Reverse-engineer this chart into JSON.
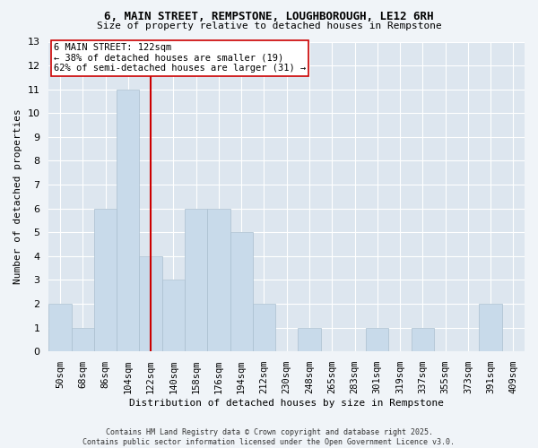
{
  "title1": "6, MAIN STREET, REMPSTONE, LOUGHBOROUGH, LE12 6RH",
  "title2": "Size of property relative to detached houses in Rempstone",
  "xlabel": "Distribution of detached houses by size in Rempstone",
  "ylabel": "Number of detached properties",
  "categories": [
    "50sqm",
    "68sqm",
    "86sqm",
    "104sqm",
    "122sqm",
    "140sqm",
    "158sqm",
    "176sqm",
    "194sqm",
    "212sqm",
    "230sqm",
    "248sqm",
    "265sqm",
    "283sqm",
    "301sqm",
    "319sqm",
    "337sqm",
    "355sqm",
    "373sqm",
    "391sqm",
    "409sqm"
  ],
  "values": [
    2,
    1,
    6,
    11,
    4,
    3,
    6,
    6,
    5,
    2,
    0,
    1,
    0,
    0,
    1,
    0,
    1,
    0,
    0,
    2,
    0
  ],
  "bar_color": "#c8daea",
  "bar_edge_color": "#aabfcf",
  "vline_x": 4,
  "vline_color": "#cc0000",
  "ylim": [
    0,
    13
  ],
  "yticks": [
    0,
    1,
    2,
    3,
    4,
    5,
    6,
    7,
    8,
    9,
    10,
    11,
    12,
    13
  ],
  "annotation_line1": "6 MAIN STREET: 122sqm",
  "annotation_line2": "← 38% of detached houses are smaller (19)",
  "annotation_line3": "62% of semi-detached houses are larger (31) →",
  "annotation_box_color": "#ffffff",
  "annotation_box_edge": "#cc0000",
  "fig_background_color": "#f0f4f8",
  "plot_background_color": "#dde6ef",
  "grid_color": "#ffffff",
  "footer1": "Contains HM Land Registry data © Crown copyright and database right 2025.",
  "footer2": "Contains public sector information licensed under the Open Government Licence v3.0."
}
